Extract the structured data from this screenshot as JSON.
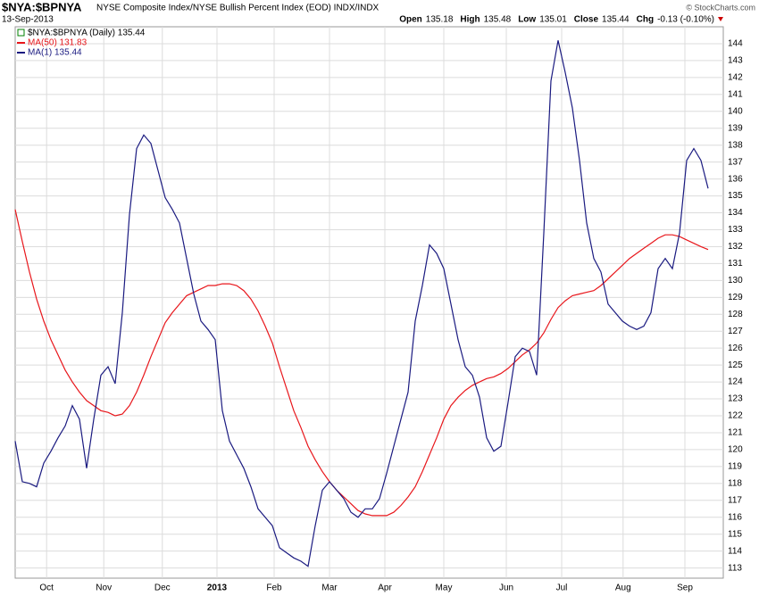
{
  "chart_data": {
    "type": "line",
    "title": "$NYA:$BPNYA",
    "subtitle": "NYSE Composite Index/NYSE Bullish Percent Index (EOD) INDX/INDX",
    "date": "13-Sep-2013",
    "credit": "© StockCharts.com",
    "quote": [
      {
        "label": "Open",
        "value": "135.18"
      },
      {
        "label": "High",
        "value": "135.48"
      },
      {
        "label": "Low",
        "value": "135.01"
      },
      {
        "label": "Close",
        "value": "135.44"
      },
      {
        "label": "Chg",
        "value": "-0.13 (-0.10%)"
      }
    ],
    "legend_main": "$NYA:$BPNYA (Daily) 135.44",
    "legend_main_color": "#008000",
    "xlim": [
      0,
      97
    ],
    "xticks": [
      {
        "value": 4.4,
        "label": "Oct"
      },
      {
        "value": 12.4,
        "label": "Nov"
      },
      {
        "value": 20.6,
        "label": "Dec"
      },
      {
        "value": 28.25,
        "label": "2013"
      },
      {
        "value": 36.25,
        "label": "Feb"
      },
      {
        "value": 44,
        "label": "Mar"
      },
      {
        "value": 51.75,
        "label": "Apr"
      },
      {
        "value": 60,
        "label": "May"
      },
      {
        "value": 68.75,
        "label": "Jun"
      },
      {
        "value": 76.5,
        "label": "Jul"
      },
      {
        "value": 85.1,
        "label": "Aug"
      },
      {
        "value": 93.75,
        "label": "Sep"
      }
    ],
    "ylim": [
      112.4,
      145
    ],
    "yticks": [
      113,
      114,
      115,
      116,
      117,
      118,
      119,
      120,
      121,
      122,
      123,
      124,
      125,
      126,
      127,
      128,
      129,
      130,
      131,
      132,
      133,
      134,
      135,
      136,
      137,
      138,
      139,
      140,
      141,
      142,
      143,
      144
    ],
    "grid": true,
    "series": [
      {
        "name": "MA(50) 131.83",
        "color": "#e8161b",
        "values": [
          134.2,
          132.3,
          130.5,
          128.9,
          127.6,
          126.5,
          125.6,
          124.7,
          124,
          123.4,
          122.9,
          122.6,
          122.3,
          122.2,
          122,
          122.1,
          122.6,
          123.4,
          124.4,
          125.5,
          126.5,
          127.5,
          128.1,
          128.6,
          129.1,
          129.3,
          129.5,
          129.7,
          129.7,
          129.8,
          129.8,
          129.7,
          129.4,
          128.9,
          128.2,
          127.3,
          126.3,
          124.9,
          123.6,
          122.3,
          121.3,
          120.2,
          119.4,
          118.7,
          118.1,
          117.6,
          117.2,
          116.8,
          116.4,
          116.2,
          116.1,
          116.1,
          116.1,
          116.3,
          116.7,
          117.2,
          117.8,
          118.7,
          119.7,
          120.7,
          121.8,
          122.6,
          123.1,
          123.5,
          123.8,
          124,
          124.2,
          124.3,
          124.5,
          124.8,
          125.2,
          125.6,
          125.9,
          126.3,
          126.9,
          127.7,
          128.4,
          128.8,
          129.1,
          129.2,
          129.3,
          129.4,
          129.7,
          130.1,
          130.5,
          130.9,
          131.3,
          131.6,
          131.9,
          132.2,
          132.5,
          132.7,
          132.7,
          132.6,
          132.4,
          132.2,
          132,
          131.83
        ]
      },
      {
        "name": "MA(1) 135.44",
        "color": "#1a1a80",
        "values": [
          120.5,
          118.1,
          118,
          117.8,
          119.2,
          119.9,
          120.7,
          121.4,
          122.6,
          121.8,
          118.9,
          121.8,
          124.4,
          124.9,
          123.9,
          128.1,
          133.9,
          137.8,
          138.6,
          138.1,
          136.5,
          134.9,
          134.2,
          133.4,
          131.3,
          129.2,
          127.6,
          127.1,
          126.5,
          122.3,
          120.5,
          119.7,
          118.9,
          117.8,
          116.5,
          116,
          115.5,
          114.2,
          113.9,
          113.6,
          113.4,
          113.1,
          115.5,
          117.6,
          118.1,
          117.6,
          117.1,
          116.3,
          116,
          116.5,
          116.5,
          117.1,
          118.6,
          120.2,
          121.8,
          123.4,
          127.6,
          129.7,
          132.1,
          131.6,
          130.7,
          128.6,
          126.5,
          124.9,
          124.4,
          123.1,
          120.7,
          119.9,
          120.2,
          122.8,
          125.5,
          126,
          125.8,
          124.4,
          132.8,
          141.8,
          144.2,
          142.3,
          140.2,
          137.1,
          133.4,
          131.3,
          130.5,
          128.6,
          128.1,
          127.6,
          127.3,
          127.1,
          127.3,
          128.1,
          130.7,
          131.3,
          130.7,
          132.8,
          137.1,
          137.8,
          137.1,
          135.44
        ]
      }
    ]
  }
}
